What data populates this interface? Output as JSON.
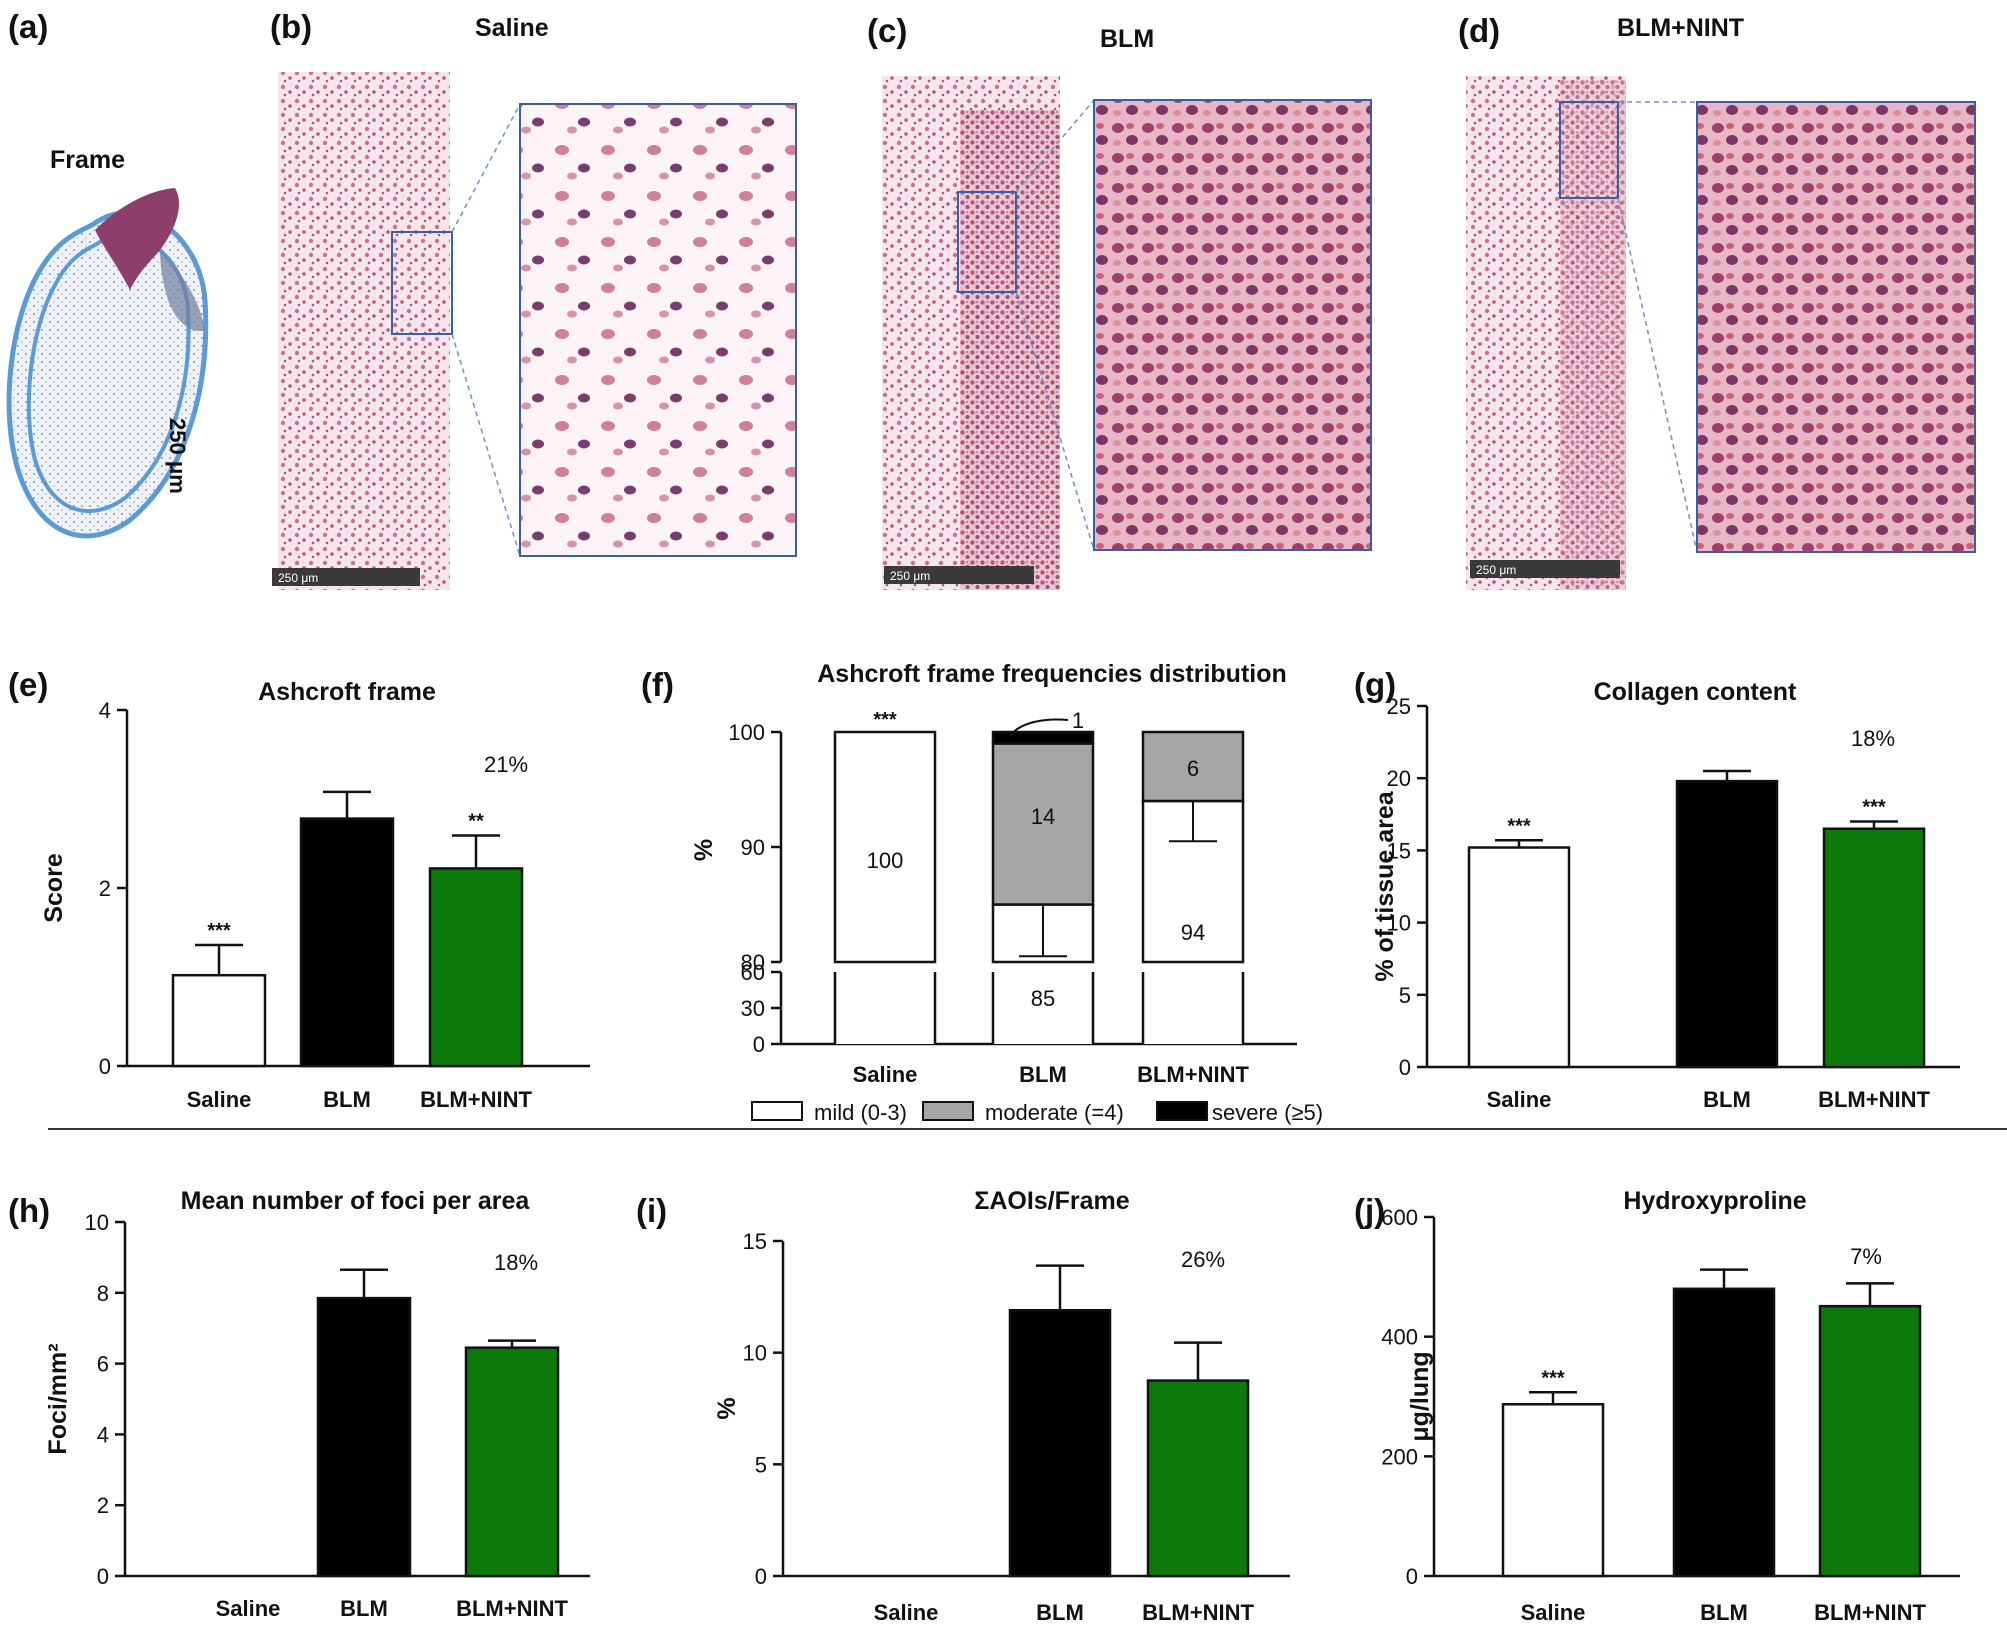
{
  "histology": {
    "panels": [
      {
        "letter": "(a)",
        "label": "Frame",
        "annotation": "250 μm"
      },
      {
        "letter": "(b)",
        "label": "Saline",
        "scalebar": "250 μm"
      },
      {
        "letter": "(c)",
        "label": "BLM",
        "scalebar": "250 μm"
      },
      {
        "letter": "(d)",
        "label": "BLM+NINT",
        "scalebar": "250 μm"
      }
    ]
  },
  "colors": {
    "saline": "#ffffff",
    "blm": "#000000",
    "nint": "#0b7a0b",
    "moderate": "#a6a6a6",
    "frame": "#5b9bd5",
    "stain": "#d9a5b8"
  },
  "chart_data": [
    {
      "id": "e",
      "letter": "(e)",
      "type": "bar",
      "title": "Ashcroft frame",
      "ylabel": "Score",
      "xlabel": "",
      "categories": [
        "Saline",
        "BLM",
        "BLM+NINT"
      ],
      "values": [
        1.02,
        2.78,
        2.22
      ],
      "errors": [
        0.34,
        0.3,
        0.37
      ],
      "significance": [
        "***",
        "",
        "**"
      ],
      "percent_label": "21%",
      "ylim": [
        0,
        4
      ],
      "yticks": [
        "0",
        "2",
        "4"
      ]
    },
    {
      "id": "f",
      "letter": "(f)",
      "type": "bar",
      "stacked": true,
      "title": "Ashcroft frame frequencies distribution",
      "ylabel": "%",
      "categories": [
        "Saline",
        "BLM",
        "BLM+NINT"
      ],
      "series": [
        {
          "name": "mild (0-3)",
          "values": [
            100,
            85,
            94
          ],
          "errors": [
            0,
            4.5,
            3.5
          ]
        },
        {
          "name": "moderate (=4)",
          "values": [
            0,
            14,
            6
          ]
        },
        {
          "name": "severe (≥5)",
          "values": [
            0,
            1,
            0
          ]
        }
      ],
      "segment_labels": [
        [
          "100"
        ],
        [
          "85",
          "14",
          "1"
        ],
        [
          "94",
          "6"
        ]
      ],
      "significance": [
        "***",
        "",
        ""
      ],
      "axis_break": {
        "lower": [
          0,
          60
        ],
        "upper": [
          80,
          100
        ]
      },
      "yticks": [
        "0",
        "30",
        "60",
        "80",
        "90",
        "100"
      ],
      "legend": [
        "mild (0-3)",
        "moderate (=4)",
        "severe (≥5)"
      ],
      "legend_position": "bottom"
    },
    {
      "id": "g",
      "letter": "(g)",
      "type": "bar",
      "title": "Collagen content",
      "ylabel": "% of tissue area",
      "categories": [
        "Saline",
        "BLM",
        "BLM+NINT"
      ],
      "values": [
        15.2,
        19.8,
        16.5
      ],
      "errors": [
        0.5,
        0.7,
        0.5
      ],
      "significance": [
        "***",
        "",
        "***"
      ],
      "percent_label": "18%",
      "ylim": [
        0,
        25
      ],
      "yticks": [
        "0",
        "5",
        "10",
        "15",
        "20",
        "25"
      ]
    },
    {
      "id": "h",
      "letter": "(h)",
      "type": "bar",
      "title": "Mean number of foci per area",
      "ylabel": "Foci/mm²",
      "categories": [
        "Saline",
        "BLM",
        "BLM+NINT"
      ],
      "values": [
        0,
        7.85,
        6.45
      ],
      "errors": [
        0,
        0.8,
        0.2
      ],
      "significance": [
        "",
        "",
        ""
      ],
      "percent_label": "18%",
      "ylim": [
        0,
        10
      ],
      "yticks": [
        "0",
        "2",
        "4",
        "6",
        "8",
        "10"
      ]
    },
    {
      "id": "i",
      "letter": "(i)",
      "type": "bar",
      "title": "ΣAOIs/Frame",
      "ylabel": "%",
      "categories": [
        "Saline",
        "BLM",
        "BLM+NINT"
      ],
      "values": [
        0,
        11.9,
        8.75
      ],
      "errors": [
        0,
        2.0,
        1.7
      ],
      "significance": [
        "",
        "",
        ""
      ],
      "percent_label": "26%",
      "ylim": [
        0,
        15
      ],
      "yticks": [
        "0",
        "5",
        "10",
        "15"
      ]
    },
    {
      "id": "j",
      "letter": "(j)",
      "type": "bar",
      "title": "Hydroxyproline",
      "ylabel": "μg/lung",
      "categories": [
        "Saline",
        "BLM",
        "BLM+NINT"
      ],
      "values": [
        287,
        480,
        451
      ],
      "errors": [
        20,
        32,
        38
      ],
      "significance": [
        "***",
        "",
        ""
      ],
      "percent_label": "7%",
      "ylim": [
        0,
        600
      ],
      "yticks": [
        "0",
        "200",
        "400",
        "600"
      ]
    }
  ]
}
